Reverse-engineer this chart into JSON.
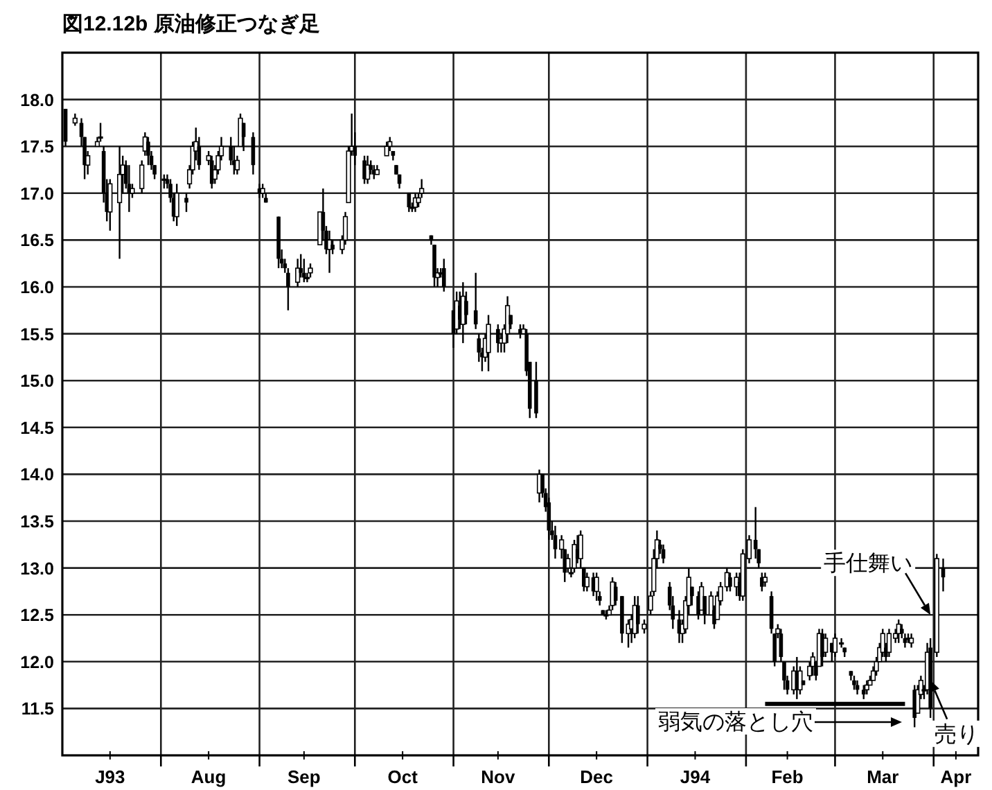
{
  "chart_data": {
    "type": "candlestick",
    "title": "図12.12b 原油修正つなぎ足",
    "color": "#000000",
    "grid": true,
    "xlim": [
      "1993-07-01",
      "1994-04-15"
    ],
    "ylim": [
      11,
      18.5
    ],
    "xticks": [
      {
        "value": "1993-07-16",
        "label": "J93"
      },
      {
        "value": "1993-08-01",
        "label": null
      },
      {
        "value": "1993-08-16",
        "label": "Aug"
      },
      {
        "value": "1993-09-01",
        "label": null
      },
      {
        "value": "1993-09-15",
        "label": "Sep"
      },
      {
        "value": "1993-10-01",
        "label": null
      },
      {
        "value": "1993-10-16",
        "label": "Oct"
      },
      {
        "value": "1993-11-01",
        "label": null
      },
      {
        "value": "1993-11-15",
        "label": "Nov"
      },
      {
        "value": "1993-12-01",
        "label": null
      },
      {
        "value": "1993-12-16",
        "label": "Dec"
      },
      {
        "value": "1994-01-01",
        "label": null
      },
      {
        "value": "1994-01-16",
        "label": "J94"
      },
      {
        "value": "1994-02-01",
        "label": null
      },
      {
        "value": "1994-02-14",
        "label": "Feb"
      },
      {
        "value": "1994-03-01",
        "label": null
      },
      {
        "value": "1994-03-16",
        "label": "Mar"
      },
      {
        "value": "1994-04-01",
        "label": null
      },
      {
        "value": "1994-04-08",
        "label": "Apr"
      }
    ],
    "yticks": [
      {
        "value": 11.5,
        "label": "11.5"
      },
      {
        "value": 12,
        "label": "12.0"
      },
      {
        "value": 12.5,
        "label": "12.5"
      },
      {
        "value": 13,
        "label": "13.0"
      },
      {
        "value": 13.5,
        "label": "13.5"
      },
      {
        "value": 14,
        "label": "14.0"
      },
      {
        "value": 14.5,
        "label": "14.5"
      },
      {
        "value": 15,
        "label": "15.0"
      },
      {
        "value": 15.5,
        "label": "15.5"
      },
      {
        "value": 16,
        "label": "16.0"
      },
      {
        "value": 16.5,
        "label": "16.5"
      },
      {
        "value": 17,
        "label": "17.0"
      },
      {
        "value": 17.5,
        "label": "17.5"
      },
      {
        "value": 18,
        "label": "18.0"
      }
    ],
    "x": [
      "1993-07-02",
      "1993-07-05",
      "1993-07-07",
      "1993-07-08",
      "1993-07-09",
      "1993-07-12",
      "1993-07-13",
      "1993-07-14",
      "1993-07-15",
      "1993-07-16",
      "1993-07-19",
      "1993-07-20",
      "1993-07-21",
      "1993-07-22",
      "1993-07-23",
      "1993-07-26",
      "1993-07-27",
      "1993-07-28",
      "1993-07-29",
      "1993-07-30",
      "1993-08-02",
      "1993-08-03",
      "1993-08-04",
      "1993-08-05",
      "1993-08-06",
      "1993-08-09",
      "1993-08-10",
      "1993-08-11",
      "1993-08-12",
      "1993-08-13",
      "1993-08-16",
      "1993-08-17",
      "1993-08-18",
      "1993-08-19",
      "1993-08-20",
      "1993-08-23",
      "1993-08-24",
      "1993-08-25",
      "1993-08-26",
      "1993-08-27",
      "1993-08-30",
      "1993-09-01",
      "1993-09-02",
      "1993-09-03",
      "1993-09-07",
      "1993-09-08",
      "1993-09-09",
      "1993-09-10",
      "1993-09-13",
      "1993-09-14",
      "1993-09-15",
      "1993-09-16",
      "1993-09-17",
      "1993-09-20",
      "1993-09-21",
      "1993-09-22",
      "1993-09-23",
      "1993-09-24",
      "1993-09-27",
      "1993-09-28",
      "1993-09-29",
      "1993-09-30",
      "1993-10-01",
      "1993-10-04",
      "1993-10-05",
      "1993-10-06",
      "1993-10-07",
      "1993-10-08",
      "1993-10-11",
      "1993-10-12",
      "1993-10-13",
      "1993-10-14",
      "1993-10-15",
      "1993-10-18",
      "1993-10-19",
      "1993-10-20",
      "1993-10-21",
      "1993-10-22",
      "1993-10-25",
      "1993-10-26",
      "1993-10-27",
      "1993-10-28",
      "1993-10-29",
      "1993-11-01",
      "1993-11-02",
      "1993-11-03",
      "1993-11-04",
      "1993-11-05",
      "1993-11-08",
      "1993-11-09",
      "1993-11-10",
      "1993-11-11",
      "1993-11-12",
      "1993-11-15",
      "1993-11-16",
      "1993-11-17",
      "1993-11-18",
      "1993-11-19",
      "1993-11-22",
      "1993-11-23",
      "1993-11-24",
      "1993-11-25",
      "1993-11-27",
      "1993-11-28",
      "1993-11-29",
      "1993-11-30",
      "1993-12-01",
      "1993-12-02",
      "1993-12-03",
      "1993-12-05",
      "1993-12-06",
      "1993-12-07",
      "1993-12-08",
      "1993-12-09",
      "1993-12-10",
      "1993-12-11",
      "1993-12-12",
      "1993-12-13",
      "1993-12-15",
      "1993-12-16",
      "1993-12-17",
      "1993-12-18",
      "1993-12-19",
      "1993-12-20",
      "1993-12-21",
      "1993-12-22",
      "1993-12-24",
      "1993-12-26",
      "1993-12-27",
      "1993-12-28",
      "1993-12-29",
      "1993-12-31",
      "1994-01-02",
      "1994-01-03",
      "1994-01-04",
      "1994-01-05",
      "1994-01-06",
      "1994-01-08",
      "1994-01-09",
      "1994-01-11",
      "1994-01-12",
      "1994-01-13",
      "1994-01-14",
      "1994-01-15",
      "1994-01-17",
      "1994-01-18",
      "1994-01-19",
      "1994-01-21",
      "1994-01-22",
      "1994-01-23",
      "1994-01-24",
      "1994-01-26",
      "1994-01-27",
      "1994-01-29",
      "1994-01-30",
      "1994-01-31",
      "1994-02-02",
      "1994-02-04",
      "1994-02-05",
      "1994-02-06",
      "1994-02-07",
      "1994-02-09",
      "1994-02-10",
      "1994-02-11",
      "1994-02-12",
      "1994-02-13",
      "1994-02-14",
      "1994-02-16",
      "1994-02-17",
      "1994-02-18",
      "1994-02-19",
      "1994-02-21",
      "1994-02-22",
      "1994-02-23",
      "1994-02-24",
      "1994-02-25",
      "1994-02-26",
      "1994-02-28",
      "1994-03-01",
      "1994-03-03",
      "1994-03-04",
      "1994-03-06",
      "1994-03-07",
      "1994-03-08",
      "1994-03-10",
      "1994-03-11",
      "1994-03-12",
      "1994-03-13",
      "1994-03-14",
      "1994-03-15",
      "1994-03-16",
      "1994-03-17",
      "1994-03-18",
      "1994-03-20",
      "1994-03-21",
      "1994-03-22",
      "1994-03-23",
      "1994-03-24",
      "1994-03-25",
      "1994-03-26",
      "1994-03-27",
      "1994-03-28",
      "1994-03-29",
      "1994-03-30",
      "1994-03-31",
      "1994-04-02",
      "1994-04-04"
    ],
    "ohlc": [
      [
        17.9,
        17.9,
        17.5,
        17.55
      ],
      [
        17.75,
        17.85,
        17.72,
        17.8
      ],
      [
        17.75,
        17.8,
        17.5,
        17.6
      ],
      [
        17.6,
        17.6,
        17.15,
        17.3
      ],
      [
        17.3,
        17.45,
        17.2,
        17.4
      ],
      [
        17.5,
        17.6,
        17.5,
        17.55
      ],
      [
        17.6,
        17.75,
        17.55,
        17.6
      ],
      [
        17.45,
        17.5,
        16.9,
        17.0
      ],
      [
        17.0,
        17.15,
        16.7,
        16.8
      ],
      [
        16.8,
        17.15,
        16.6,
        17.1
      ],
      [
        16.9,
        17.5,
        16.3,
        17.2
      ],
      [
        17.2,
        17.4,
        17.0,
        17.3
      ],
      [
        17.3,
        17.35,
        17.05,
        17.1
      ],
      [
        17.1,
        17.3,
        16.8,
        17.0
      ],
      [
        17.0,
        17.1,
        16.95,
        17.05
      ],
      [
        17.05,
        17.35,
        17.0,
        17.3
      ],
      [
        17.45,
        17.65,
        17.4,
        17.6
      ],
      [
        17.55,
        17.6,
        17.3,
        17.4
      ],
      [
        17.4,
        17.45,
        17.25,
        17.3
      ],
      [
        17.3,
        17.3,
        17.15,
        17.2
      ],
      [
        17.15,
        17.2,
        17.05,
        17.15
      ],
      [
        17.15,
        17.2,
        17.05,
        17.1
      ],
      [
        17.1,
        17.15,
        16.9,
        16.95
      ],
      [
        16.95,
        17.0,
        16.7,
        16.75
      ],
      [
        16.75,
        17.1,
        16.65,
        17.0
      ],
      [
        16.95,
        17.0,
        16.8,
        16.9
      ],
      [
        17.1,
        17.3,
        17.05,
        17.25
      ],
      [
        17.25,
        17.55,
        17.2,
        17.5
      ],
      [
        17.45,
        17.7,
        17.35,
        17.55
      ],
      [
        17.5,
        17.6,
        17.25,
        17.3
      ],
      [
        17.35,
        17.45,
        17.3,
        17.4
      ],
      [
        17.35,
        17.4,
        17.05,
        17.1
      ],
      [
        17.15,
        17.3,
        17.1,
        17.25
      ],
      [
        17.25,
        17.45,
        17.2,
        17.4
      ],
      [
        17.4,
        17.6,
        17.35,
        17.5
      ],
      [
        17.5,
        17.6,
        17.3,
        17.35
      ],
      [
        17.35,
        17.5,
        17.2,
        17.3
      ],
      [
        17.25,
        17.4,
        17.2,
        17.35
      ],
      [
        17.5,
        17.85,
        17.5,
        17.8
      ],
      [
        17.75,
        17.75,
        17.45,
        17.6
      ],
      [
        17.6,
        17.65,
        17.2,
        17.3
      ],
      [
        17.05,
        17.1,
        16.95,
        17.0
      ],
      [
        17.0,
        17.1,
        16.95,
        17.05
      ],
      [
        16.95,
        17.0,
        16.9,
        16.9
      ],
      [
        16.75,
        16.75,
        16.2,
        16.3
      ],
      [
        16.3,
        16.4,
        16.2,
        16.25
      ],
      [
        16.25,
        16.3,
        16.15,
        16.2
      ],
      [
        16.15,
        16.2,
        15.75,
        16.0
      ],
      [
        16.05,
        16.3,
        16.0,
        16.2
      ],
      [
        16.2,
        16.35,
        16.1,
        16.15
      ],
      [
        16.15,
        16.3,
        16.05,
        16.1
      ],
      [
        16.1,
        16.15,
        16.05,
        16.1
      ],
      [
        16.15,
        16.25,
        16.1,
        16.2
      ],
      [
        16.45,
        16.8,
        16.45,
        16.8
      ],
      [
        16.8,
        17.05,
        16.5,
        16.6
      ],
      [
        16.6,
        16.65,
        16.35,
        16.4
      ],
      [
        16.4,
        16.6,
        16.15,
        16.5
      ],
      [
        16.45,
        16.5,
        16.35,
        16.4
      ],
      [
        16.4,
        16.55,
        16.35,
        16.5
      ],
      [
        16.5,
        16.8,
        16.45,
        16.75
      ],
      [
        16.9,
        17.5,
        16.9,
        17.45
      ],
      [
        17.45,
        17.85,
        17.4,
        17.5
      ],
      [
        17.5,
        17.65,
        17.3,
        17.4
      ],
      [
        17.35,
        17.4,
        17.1,
        17.15
      ],
      [
        17.15,
        17.4,
        17.1,
        17.3
      ],
      [
        17.3,
        17.35,
        17.2,
        17.25
      ],
      [
        17.25,
        17.3,
        17.15,
        17.2
      ],
      [
        17.2,
        17.3,
        17.2,
        17.25
      ],
      [
        17.4,
        17.55,
        17.4,
        17.5
      ],
      [
        17.5,
        17.6,
        17.45,
        17.55
      ],
      [
        17.45,
        17.45,
        17.35,
        17.4
      ],
      [
        17.3,
        17.3,
        17.2,
        17.2
      ],
      [
        17.2,
        17.2,
        17.05,
        17.1
      ],
      [
        17.0,
        17.0,
        16.8,
        16.85
      ],
      [
        16.85,
        16.9,
        16.8,
        16.85
      ],
      [
        16.85,
        17.0,
        16.8,
        16.95
      ],
      [
        16.9,
        17.0,
        16.85,
        16.95
      ],
      [
        17.0,
        17.15,
        16.95,
        17.05
      ],
      [
        16.55,
        16.55,
        16.45,
        16.5
      ],
      [
        16.45,
        16.45,
        16.0,
        16.1
      ],
      [
        16.1,
        16.2,
        16.0,
        16.15
      ],
      [
        16.15,
        16.2,
        16.1,
        16.15
      ],
      [
        16.2,
        16.3,
        15.95,
        16.0
      ],
      [
        15.75,
        15.75,
        15.35,
        15.5
      ],
      [
        15.55,
        15.95,
        15.5,
        15.85
      ],
      [
        15.8,
        15.95,
        15.55,
        15.65
      ],
      [
        15.6,
        16.05,
        15.4,
        15.9
      ],
      [
        15.85,
        15.95,
        15.6,
        15.7
      ],
      [
        15.75,
        16.15,
        15.55,
        15.6
      ],
      [
        15.45,
        15.5,
        15.2,
        15.3
      ],
      [
        15.3,
        15.35,
        15.1,
        15.25
      ],
      [
        15.25,
        15.5,
        15.2,
        15.45
      ],
      [
        15.3,
        15.7,
        15.1,
        15.6
      ],
      [
        15.55,
        15.6,
        15.3,
        15.4
      ],
      [
        15.4,
        15.5,
        15.3,
        15.45
      ],
      [
        15.4,
        15.6,
        15.3,
        15.55
      ],
      [
        15.5,
        15.9,
        15.4,
        15.8
      ],
      [
        15.7,
        15.7,
        15.55,
        15.6
      ],
      [
        15.55,
        15.6,
        15.45,
        15.5
      ],
      [
        15.5,
        15.6,
        15.5,
        15.55
      ],
      [
        15.5,
        15.55,
        15.05,
        15.1
      ],
      [
        15.2,
        15.2,
        14.6,
        14.7
      ],
      [
        15.0,
        15.2,
        14.6,
        14.65
      ],
      [
        13.8,
        14.05,
        13.7,
        14.0
      ],
      [
        14.0,
        14.0,
        13.75,
        13.8
      ],
      [
        13.8,
        13.85,
        13.6,
        13.65
      ],
      [
        13.7,
        13.75,
        13.3,
        13.4
      ],
      [
        13.4,
        13.5,
        13.3,
        13.35
      ],
      [
        13.35,
        13.45,
        13.1,
        13.2
      ],
      [
        13.2,
        13.35,
        13.1,
        13.3
      ],
      [
        13.2,
        13.2,
        12.85,
        12.95
      ],
      [
        13.0,
        13.15,
        12.95,
        13.1
      ],
      [
        12.95,
        13.0,
        12.9,
        12.95
      ],
      [
        13.0,
        13.3,
        12.95,
        13.25
      ],
      [
        13.2,
        13.35,
        13.05,
        13.1
      ],
      [
        13.1,
        13.4,
        13.0,
        13.35
      ],
      [
        13.0,
        13.0,
        12.75,
        12.8
      ],
      [
        12.8,
        12.95,
        12.75,
        12.9
      ],
      [
        12.9,
        12.95,
        12.7,
        12.75
      ],
      [
        12.75,
        12.95,
        12.65,
        12.9
      ],
      [
        12.7,
        12.75,
        12.6,
        12.65
      ],
      [
        12.55,
        12.55,
        12.5,
        12.5
      ],
      [
        12.5,
        12.55,
        12.45,
        12.5
      ],
      [
        12.5,
        12.6,
        12.5,
        12.55
      ],
      [
        12.6,
        12.9,
        12.55,
        12.85
      ],
      [
        12.8,
        12.85,
        12.6,
        12.65
      ],
      [
        12.7,
        12.7,
        12.2,
        12.3
      ],
      [
        12.3,
        12.45,
        12.15,
        12.4
      ],
      [
        12.35,
        12.5,
        12.2,
        12.45
      ],
      [
        12.3,
        12.7,
        12.25,
        12.6
      ],
      [
        12.6,
        12.7,
        12.3,
        12.4
      ],
      [
        12.35,
        12.45,
        12.3,
        12.4
      ],
      [
        12.55,
        12.75,
        12.5,
        12.7
      ],
      [
        12.75,
        13.2,
        12.7,
        13.1
      ],
      [
        13.1,
        13.4,
        13.0,
        13.3
      ],
      [
        13.25,
        13.3,
        13.15,
        13.2
      ],
      [
        13.2,
        13.25,
        13.05,
        13.1
      ],
      [
        12.8,
        12.85,
        12.55,
        12.6
      ],
      [
        12.6,
        12.7,
        12.35,
        12.45
      ],
      [
        12.45,
        12.55,
        12.2,
        12.3
      ],
      [
        12.3,
        12.45,
        12.2,
        12.4
      ],
      [
        12.35,
        12.7,
        12.3,
        12.65
      ],
      [
        12.6,
        13.0,
        12.5,
        12.9
      ],
      [
        12.8,
        12.8,
        12.6,
        12.7
      ],
      [
        12.7,
        12.75,
        12.45,
        12.5
      ],
      [
        12.55,
        12.85,
        12.55,
        12.8
      ],
      [
        12.7,
        12.7,
        12.4,
        12.5
      ],
      [
        12.5,
        12.75,
        12.5,
        12.7
      ],
      [
        12.55,
        12.6,
        12.35,
        12.4
      ],
      [
        12.45,
        12.75,
        12.45,
        12.7
      ],
      [
        12.65,
        12.85,
        12.6,
        12.8
      ],
      [
        12.8,
        13.0,
        12.75,
        12.95
      ],
      [
        12.9,
        12.95,
        12.75,
        12.8
      ],
      [
        12.8,
        12.95,
        12.7,
        12.9
      ],
      [
        12.85,
        12.95,
        12.65,
        12.7
      ],
      [
        12.7,
        13.2,
        12.65,
        13.15
      ],
      [
        13.1,
        13.35,
        13.05,
        13.3
      ],
      [
        13.3,
        13.65,
        13.1,
        13.2
      ],
      [
        13.2,
        13.2,
        13.0,
        13.05
      ],
      [
        12.9,
        12.95,
        12.75,
        12.8
      ],
      [
        12.85,
        12.95,
        12.8,
        12.9
      ],
      [
        12.7,
        12.75,
        12.3,
        12.35
      ],
      [
        12.3,
        12.3,
        11.95,
        12.0
      ],
      [
        12.3,
        12.4,
        12.25,
        12.35
      ],
      [
        12.3,
        12.35,
        12.0,
        12.05
      ],
      [
        12.0,
        12.0,
        11.7,
        11.8
      ],
      [
        11.8,
        11.85,
        11.65,
        11.7
      ],
      [
        11.7,
        11.95,
        11.65,
        11.9
      ],
      [
        11.9,
        12.05,
        11.6,
        11.7
      ],
      [
        11.7,
        11.95,
        11.65,
        11.9
      ],
      [
        11.8,
        11.8,
        11.75,
        11.75
      ],
      [
        11.85,
        12.0,
        11.8,
        11.95
      ],
      [
        11.95,
        12.1,
        11.85,
        12.05
      ],
      [
        12.0,
        12.0,
        11.8,
        11.85
      ],
      [
        11.95,
        12.35,
        11.95,
        12.3
      ],
      [
        12.3,
        12.35,
        11.95,
        12.05
      ],
      [
        12.1,
        12.3,
        12.05,
        12.25
      ],
      [
        12.2,
        12.2,
        12.0,
        12.1
      ],
      [
        12.1,
        12.3,
        12.05,
        12.25
      ],
      [
        12.2,
        12.25,
        12.15,
        12.2
      ],
      [
        12.15,
        12.15,
        12.05,
        12.1
      ],
      [
        11.9,
        11.9,
        11.8,
        11.85
      ],
      [
        11.8,
        11.85,
        11.7,
        11.75
      ],
      [
        11.75,
        11.8,
        11.65,
        11.7
      ],
      [
        11.7,
        11.75,
        11.6,
        11.65
      ],
      [
        11.7,
        11.8,
        11.65,
        11.75
      ],
      [
        11.75,
        11.85,
        11.75,
        11.8
      ],
      [
        11.8,
        11.95,
        11.8,
        11.9
      ],
      [
        11.9,
        12.05,
        11.85,
        12.0
      ],
      [
        12.0,
        12.2,
        12.0,
        12.15
      ],
      [
        12.1,
        12.35,
        12.05,
        12.3
      ],
      [
        12.15,
        12.2,
        12.0,
        12.05
      ],
      [
        12.1,
        12.35,
        12.05,
        12.3
      ],
      [
        12.25,
        12.35,
        12.2,
        12.3
      ],
      [
        12.3,
        12.45,
        12.2,
        12.4
      ],
      [
        12.35,
        12.4,
        12.25,
        12.3
      ],
      [
        12.25,
        12.3,
        12.15,
        12.2
      ],
      [
        12.25,
        12.3,
        12.2,
        12.25
      ],
      [
        12.2,
        12.3,
        12.15,
        12.25
      ],
      [
        11.7,
        11.75,
        11.3,
        11.4
      ],
      [
        11.45,
        11.75,
        11.45,
        11.7
      ],
      [
        11.65,
        11.85,
        11.6,
        11.8
      ],
      [
        11.7,
        11.75,
        11.6,
        11.7
      ],
      [
        11.7,
        12.2,
        11.65,
        12.1
      ],
      [
        12.15,
        12.25,
        11.4,
        11.5
      ],
      [
        12.1,
        13.15,
        12.05,
        13.1
      ],
      [
        13.0,
        13.1,
        12.75,
        12.9
      ]
    ],
    "series": [
      {
        "type": "line",
        "x": [
          "1994-02-07",
          "1994-03-23"
        ],
        "values": [
          11.55,
          11.55
        ],
        "color": "#000000"
      }
    ],
    "annotations": [
      {
        "text": "手仕舞い",
        "x": "1994-03-31",
        "y": 12.5
      },
      "弱気の落とし穴",
      {
        "text": "売り",
        "x": "1994-03-31",
        "y": 11.8
      }
    ]
  }
}
